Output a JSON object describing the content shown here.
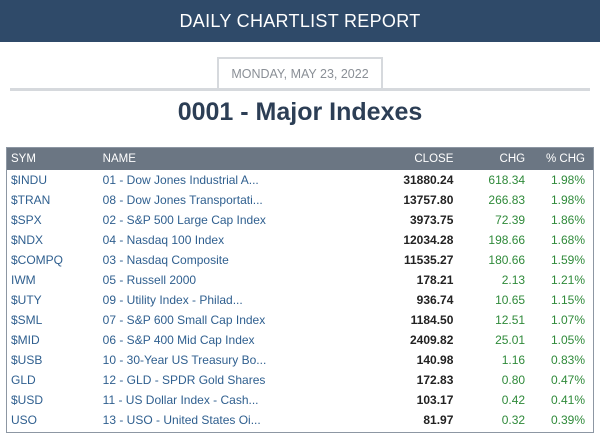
{
  "header": {
    "title": "DAILY CHARTLIST REPORT"
  },
  "report": {
    "date": "MONDAY, MAY 23, 2022",
    "list_title": "0001 - Major Indexes"
  },
  "table": {
    "columns": {
      "sym": "SYM",
      "name": "NAME",
      "close": "CLOSE",
      "chg": "CHG",
      "pct": "% CHG"
    },
    "rows": [
      {
        "sym": "$INDU",
        "name": "01 - Dow Jones Industrial A...",
        "close": "31880.24",
        "chg": "618.34",
        "pct": "1.98%"
      },
      {
        "sym": "$TRAN",
        "name": "08 - Dow Jones Transportati...",
        "close": "13757.80",
        "chg": "266.83",
        "pct": "1.98%"
      },
      {
        "sym": "$SPX",
        "name": "02 - S&P 500 Large Cap Index",
        "close": "3973.75",
        "chg": "72.39",
        "pct": "1.86%"
      },
      {
        "sym": "$NDX",
        "name": "04 - Nasdaq 100 Index",
        "close": "12034.28",
        "chg": "198.66",
        "pct": "1.68%"
      },
      {
        "sym": "$COMPQ",
        "name": "03 - Nasdaq Composite",
        "close": "11535.27",
        "chg": "180.66",
        "pct": "1.59%"
      },
      {
        "sym": "IWM",
        "name": "05 - Russell 2000",
        "close": "178.21",
        "chg": "2.13",
        "pct": "1.21%"
      },
      {
        "sym": "$UTY",
        "name": "09 - Utility Index - Philad...",
        "close": "936.74",
        "chg": "10.65",
        "pct": "1.15%"
      },
      {
        "sym": "$SML",
        "name": "07 - S&P 600 Small Cap Index",
        "close": "1184.50",
        "chg": "12.51",
        "pct": "1.07%"
      },
      {
        "sym": "$MID",
        "name": "06 - S&P 400 Mid Cap Index",
        "close": "2409.82",
        "chg": "25.01",
        "pct": "1.05%"
      },
      {
        "sym": "$USB",
        "name": "10 - 30-Year US Treasury Bo...",
        "close": "140.98",
        "chg": "1.16",
        "pct": "0.83%"
      },
      {
        "sym": "GLD",
        "name": "12 - GLD - SPDR Gold Shares",
        "close": "172.83",
        "chg": "0.80",
        "pct": "0.47%"
      },
      {
        "sym": "$USD",
        "name": "11 - US Dollar Index - Cash...",
        "close": "103.17",
        "chg": "0.42",
        "pct": "0.41%"
      },
      {
        "sym": "USO",
        "name": "13 - USO - United States Oi...",
        "close": "81.97",
        "chg": "0.32",
        "pct": "0.39%"
      }
    ]
  },
  "colors": {
    "header_bg": "#2f4a69",
    "table_header_bg": "#6b7683",
    "link": "#2f5f8f",
    "positive": "#2f8a3a",
    "title": "#2c3e55"
  }
}
